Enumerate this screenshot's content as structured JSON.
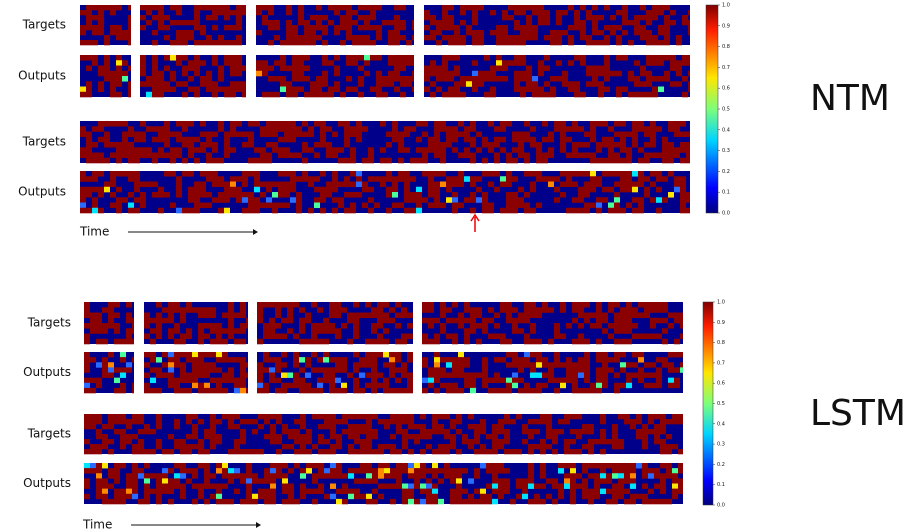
{
  "panels": [
    {
      "title": "NTM",
      "row_labels": [
        "Targets",
        "Outputs",
        "Targets",
        "Outputs"
      ],
      "time_label": "Time",
      "colorbar_ticks": [
        {
          "value": 0,
          "label": "0.0"
        },
        {
          "value": 0.1,
          "label": "0.1"
        },
        {
          "value": 0.2,
          "label": "0.2"
        },
        {
          "value": 0.3,
          "label": "0.3"
        },
        {
          "value": 0.4,
          "label": "0.4"
        },
        {
          "value": 0.5,
          "label": "0.5"
        },
        {
          "value": 0.6,
          "label": "0.6"
        },
        {
          "value": 0.7,
          "label": "0.7"
        },
        {
          "value": 0.8,
          "label": "0.8"
        },
        {
          "value": 0.9,
          "label": "0.9"
        },
        {
          "value": 1,
          "label": "1.0"
        }
      ]
    },
    {
      "title": "LSTM",
      "row_labels": [
        "Targets",
        "Outputs",
        "Targets",
        "Outputs"
      ],
      "time_label": "Time",
      "colorbar_ticks": [
        {
          "value": 0,
          "label": "0.0"
        },
        {
          "value": 0.1,
          "label": "0.1"
        },
        {
          "value": 0.2,
          "label": "0.2"
        },
        {
          "value": 0.3,
          "label": "0.3"
        },
        {
          "value": 0.4,
          "label": "0.4"
        },
        {
          "value": 0.5,
          "label": "0.5"
        },
        {
          "value": 0.6,
          "label": "0.6"
        },
        {
          "value": 0.7,
          "label": "0.7"
        },
        {
          "value": 0.8,
          "label": "0.8"
        },
        {
          "value": 0.9,
          "label": "0.9"
        },
        {
          "value": 1,
          "label": "1.0"
        }
      ]
    }
  ]
}
